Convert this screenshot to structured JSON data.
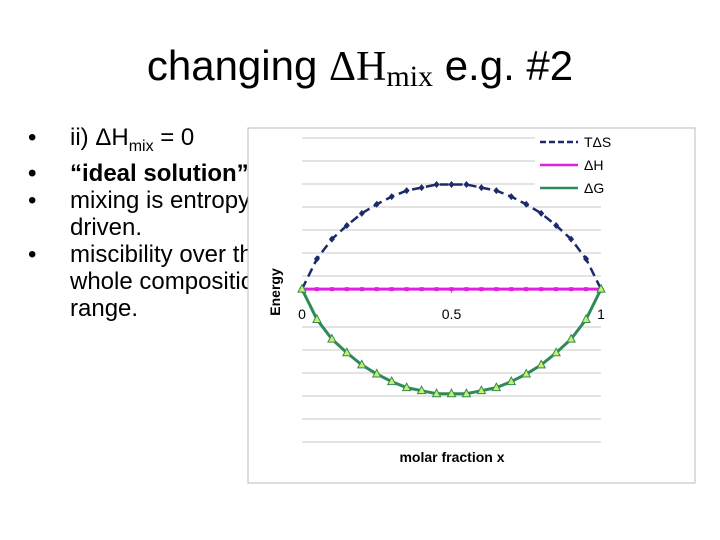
{
  "slide": {
    "title": {
      "pre": "changing ",
      "symbol": "ΔH",
      "sub": "mix",
      "post": " e.g. #2"
    },
    "bullets": [
      {
        "pre": "ii) ΔH",
        "sub": "mix",
        "post": " = 0"
      },
      {
        "text": "“ideal solution”"
      },
      {
        "text": "mixing is entropy driven."
      },
      {
        "text": "miscibility over the whole composition range."
      }
    ]
  },
  "chart_data": {
    "type": "line",
    "x_label": "molar fraction x",
    "y_label": "Energy",
    "x": [
      0,
      0.05,
      0.1,
      0.15,
      0.2,
      0.25,
      0.3,
      0.35,
      0.4,
      0.45,
      0.5,
      0.55,
      0.6,
      0.65,
      0.7,
      0.75,
      0.8,
      0.85,
      0.9,
      0.95,
      1
    ],
    "xlim": [
      0,
      1
    ],
    "xticks": [
      0,
      0.5,
      1
    ],
    "ylim": [
      -1.2,
      1.05
    ],
    "legend": "top-right",
    "series": [
      {
        "name": "TΔS",
        "color": "#1b2a6b",
        "marker": "diamond",
        "dash": true,
        "values": [
          0,
          0.2,
          0.33,
          0.42,
          0.5,
          0.56,
          0.61,
          0.65,
          0.67,
          0.69,
          0.69,
          0.69,
          0.67,
          0.65,
          0.61,
          0.56,
          0.5,
          0.42,
          0.33,
          0.2,
          0
        ]
      },
      {
        "name": "ΔH",
        "color": "#e020e0",
        "marker": "square",
        "dash": false,
        "values": [
          0,
          0,
          0,
          0,
          0,
          0,
          0,
          0,
          0,
          0,
          0,
          0,
          0,
          0,
          0,
          0,
          0,
          0,
          0,
          0,
          0
        ]
      },
      {
        "name": "ΔG",
        "color": "#2e8b57",
        "marker": "triangle",
        "dash": false,
        "values": [
          0,
          -0.2,
          -0.33,
          -0.42,
          -0.5,
          -0.56,
          -0.61,
          -0.65,
          -0.67,
          -0.69,
          -0.69,
          -0.69,
          -0.67,
          -0.65,
          -0.61,
          -0.56,
          -0.5,
          -0.42,
          -0.33,
          -0.2,
          0
        ]
      }
    ]
  }
}
